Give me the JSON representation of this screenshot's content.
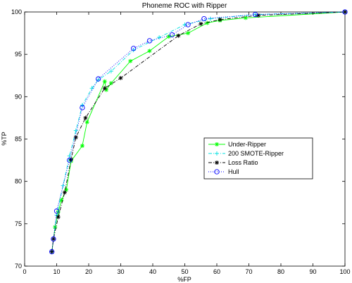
{
  "chart_data": {
    "type": "line",
    "title": "Phoneme ROC with Ripper",
    "xlabel": "%FP",
    "ylabel": "%TP",
    "xlim": [
      0,
      100
    ],
    "ylim": [
      70,
      100
    ],
    "xticks": [
      0,
      10,
      20,
      30,
      40,
      50,
      60,
      70,
      80,
      90,
      100
    ],
    "yticks": [
      70,
      75,
      80,
      85,
      90,
      95,
      100
    ],
    "grid": false,
    "legend_position": "right-center",
    "series": [
      {
        "name": "Under-Ripper",
        "color": "#00ff00",
        "dash": "solid",
        "marker": "asterisk",
        "x": [
          8.5,
          9.5,
          10.5,
          11.5,
          13,
          14.5,
          18,
          19.5,
          25,
          25.5,
          27,
          33,
          39,
          45,
          51,
          57,
          61,
          69,
          100
        ],
        "y": [
          71.7,
          74.6,
          76.4,
          77.8,
          79,
          82.4,
          84.2,
          87,
          91.8,
          90.8,
          91.6,
          94.2,
          95.4,
          97.1,
          97.5,
          98.7,
          99.0,
          99.3,
          100
        ]
      },
      {
        "name": "200 SMOTE-Ripper",
        "color": "#00e0e0",
        "dash": "dashdot",
        "marker": "plus",
        "x": [
          8.5,
          10,
          12,
          14,
          16,
          18,
          21,
          23,
          27,
          34,
          42,
          50,
          58,
          72,
          100
        ],
        "y": [
          71.7,
          76,
          79.5,
          83,
          86,
          89,
          91,
          92,
          93,
          95.5,
          97,
          98.5,
          99.2,
          99.7,
          100
        ]
      },
      {
        "name": "Loss Ratio",
        "color": "#000000",
        "dash": "dashdot",
        "marker": "star",
        "x": [
          8.5,
          9,
          10.5,
          12.5,
          14.5,
          16,
          19,
          25,
          30,
          48,
          55,
          61,
          73,
          100
        ],
        "y": [
          71.7,
          73.2,
          75.8,
          78.7,
          82.6,
          85.2,
          87.5,
          91,
          92.2,
          97.2,
          98.6,
          99.1,
          99.6,
          100
        ]
      },
      {
        "name": "Hull",
        "color": "#0000ff",
        "dash": "dotted",
        "marker": "circle",
        "x": [
          8.5,
          9,
          10,
          14,
          18,
          23,
          34,
          39,
          46,
          51,
          56,
          72,
          100
        ],
        "y": [
          71.7,
          73.2,
          76.5,
          82.5,
          88.7,
          92.1,
          95.7,
          96.6,
          97.3,
          98.5,
          99.2,
          99.7,
          100
        ]
      }
    ]
  }
}
